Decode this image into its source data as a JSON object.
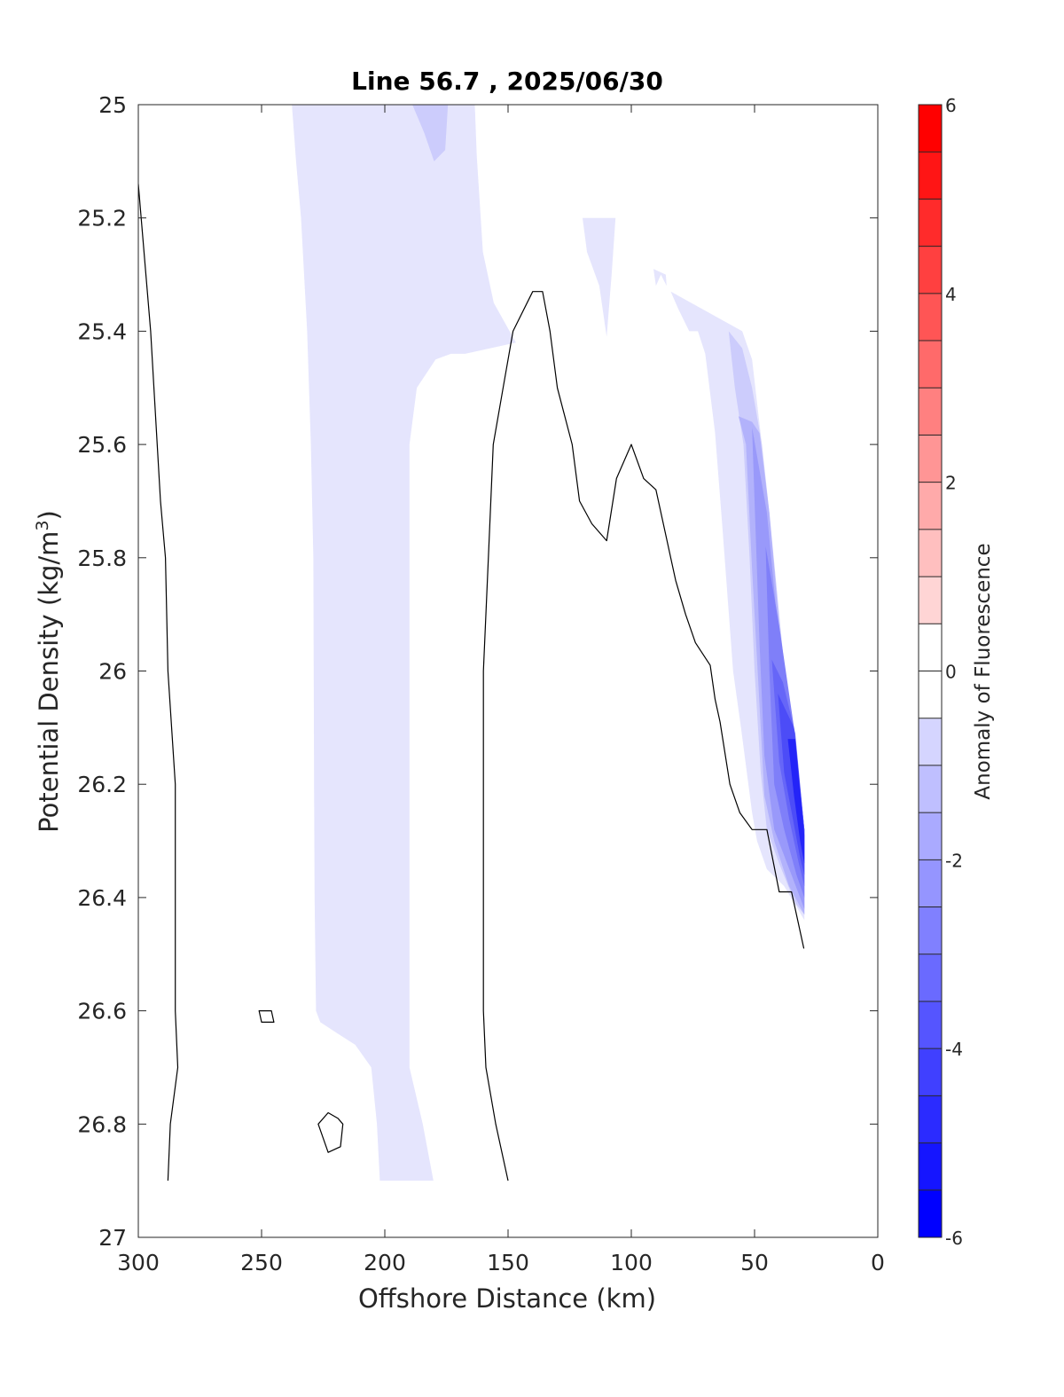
{
  "chart_data": {
    "type": "contour",
    "title": "Line 56.7 , 2025/06/30",
    "xlabel": "Offshore Distance (km)",
    "ylabel_main": "Potential Density (kg/m",
    "ylabel_sup": "3",
    "ylabel_close": ")",
    "colorbar_label": "Anomaly of Fluorescence",
    "x_reversed": true,
    "y_reversed": true,
    "xlim": [
      0,
      300
    ],
    "ylim": [
      25,
      27
    ],
    "xticks": [
      300,
      250,
      200,
      150,
      100,
      50,
      0
    ],
    "xtick_labels": [
      "300",
      "250",
      "200",
      "150",
      "100",
      "50",
      "0"
    ],
    "yticks": [
      25,
      25.2,
      25.4,
      25.6,
      25.8,
      26,
      26.2,
      26.4,
      26.6,
      26.8,
      27
    ],
    "ytick_labels": [
      "25",
      "25.2",
      "25.4",
      "25.6",
      "25.8",
      "26",
      "26.2",
      "26.4",
      "26.6",
      "26.8",
      "27"
    ],
    "colorbar": {
      "range": [
        -6,
        6
      ],
      "step": 0.5,
      "ticks": [
        6,
        4,
        2,
        0,
        -2,
        -4,
        -6
      ],
      "tick_labels": [
        "6",
        "4",
        "2",
        "0",
        "-2",
        "-4",
        "-6"
      ],
      "neg_color": "#0000ff",
      "pos_color": "#ff0000",
      "zero_color": "#ffffff"
    },
    "filled_regions": [
      {
        "level": -0.75,
        "color": "#e5e5fd",
        "points": [
          [
            237.7,
            25.0
          ],
          [
            163.5,
            25.0
          ],
          [
            162.7,
            25.09
          ],
          [
            160.2,
            25.26
          ],
          [
            155.8,
            25.35
          ],
          [
            146.8,
            25.42
          ],
          [
            167.4,
            25.44
          ],
          [
            173.2,
            25.44
          ],
          [
            179.4,
            25.45
          ],
          [
            187.0,
            25.5
          ],
          [
            190.0,
            25.6
          ],
          [
            190.0,
            25.8
          ],
          [
            190.0,
            26.2
          ],
          [
            190.0,
            26.6
          ],
          [
            190.0,
            26.7
          ],
          [
            184.6,
            26.8
          ],
          [
            180.3,
            26.9
          ],
          [
            177.0,
            26.9
          ],
          [
            202.0,
            26.9
          ],
          [
            203.2,
            26.8
          ],
          [
            205.5,
            26.7
          ],
          [
            212.0,
            26.66
          ],
          [
            219.2,
            26.64
          ],
          [
            226.2,
            26.62
          ],
          [
            227.9,
            26.6
          ],
          [
            228.5,
            26.4
          ],
          [
            228.7,
            26.2
          ],
          [
            229.0,
            25.8
          ],
          [
            230.0,
            25.6
          ],
          [
            231.5,
            25.4
          ],
          [
            234.0,
            25.2
          ],
          [
            236.0,
            25.1
          ]
        ]
      },
      {
        "level": -1.25,
        "color": "#ccccfc",
        "points": [
          [
            188.8,
            25.0
          ],
          [
            174.4,
            25.0
          ],
          [
            175.5,
            25.08
          ],
          [
            180.0,
            25.1
          ],
          [
            184.0,
            25.05
          ]
        ]
      },
      {
        "level": -0.75,
        "color": "#e5e5fd",
        "points": [
          [
            119.8,
            25.2
          ],
          [
            106.4,
            25.2
          ],
          [
            108.0,
            25.3
          ],
          [
            110.0,
            25.41
          ],
          [
            113.0,
            25.32
          ],
          [
            118.0,
            25.26
          ]
        ]
      },
      {
        "level": -0.75,
        "color": "#e5e5fd",
        "points": [
          [
            91.0,
            25.29
          ],
          [
            86.0,
            25.3
          ],
          [
            85.7,
            25.32
          ],
          [
            88.0,
            25.3
          ],
          [
            89.0,
            25.31
          ],
          [
            90.0,
            25.32
          ]
        ]
      },
      {
        "level": -0.75,
        "color": "#e5e5fd",
        "points": [
          [
            84.0,
            25.33
          ],
          [
            81.0,
            25.36
          ],
          [
            76.5,
            25.4
          ],
          [
            73.0,
            25.4
          ],
          [
            70.0,
            25.44
          ],
          [
            66.0,
            25.58
          ],
          [
            63.0,
            25.75
          ],
          [
            58.7,
            26.0
          ],
          [
            55.5,
            26.1
          ],
          [
            51.0,
            26.25
          ],
          [
            49.0,
            26.3
          ],
          [
            45.0,
            26.35
          ],
          [
            38.0,
            26.38
          ],
          [
            29.8,
            26.44
          ],
          [
            29.8,
            26.3
          ],
          [
            35.0,
            26.1
          ],
          [
            40.0,
            25.95
          ],
          [
            44.0,
            25.75
          ],
          [
            47.0,
            25.6
          ],
          [
            51.0,
            25.45
          ],
          [
            55.0,
            25.4
          ]
        ]
      },
      {
        "level": -1.25,
        "color": "#ccccfc",
        "points": [
          [
            60.5,
            25.4
          ],
          [
            58.0,
            25.5
          ],
          [
            54.5,
            25.6
          ],
          [
            52.0,
            25.8
          ],
          [
            50.0,
            26.0
          ],
          [
            47.5,
            26.18
          ],
          [
            45.0,
            26.28
          ],
          [
            40.0,
            26.34
          ],
          [
            33.5,
            26.41
          ],
          [
            29.8,
            26.43
          ],
          [
            29.8,
            26.3
          ],
          [
            36.0,
            26.08
          ],
          [
            40.0,
            25.9
          ],
          [
            44.0,
            25.72
          ],
          [
            47.0,
            25.6
          ],
          [
            51.0,
            25.5
          ],
          [
            55.0,
            25.43
          ]
        ]
      },
      {
        "level": -1.75,
        "color": "#b2b2fb",
        "points": [
          [
            56.5,
            25.55
          ],
          [
            53.5,
            25.6
          ],
          [
            51.0,
            25.82
          ],
          [
            48.5,
            26.02
          ],
          [
            46.0,
            26.22
          ],
          [
            42.0,
            26.3
          ],
          [
            36.0,
            26.38
          ],
          [
            29.8,
            26.43
          ],
          [
            29.8,
            26.28
          ],
          [
            35.0,
            26.08
          ],
          [
            40.0,
            25.92
          ],
          [
            44.0,
            25.72
          ],
          [
            48.0,
            25.58
          ],
          [
            51.0,
            25.56
          ]
        ]
      },
      {
        "level": -2.25,
        "color": "#9999fa",
        "points": [
          [
            51.0,
            25.57
          ],
          [
            50.0,
            25.7
          ],
          [
            48.0,
            25.95
          ],
          [
            46.0,
            26.15
          ],
          [
            42.0,
            26.28
          ],
          [
            35.0,
            26.36
          ],
          [
            29.8,
            26.42
          ],
          [
            29.8,
            26.28
          ],
          [
            35.0,
            26.09
          ],
          [
            40.0,
            25.95
          ],
          [
            45.0,
            25.72
          ]
        ]
      },
      {
        "level": -2.75,
        "color": "#7f7ff9",
        "points": [
          [
            45.5,
            25.78
          ],
          [
            44.0,
            26.0
          ],
          [
            42.0,
            26.2
          ],
          [
            38.0,
            26.28
          ],
          [
            33.0,
            26.36
          ],
          [
            29.8,
            26.4
          ],
          [
            29.8,
            26.28
          ],
          [
            34.0,
            26.1
          ],
          [
            40.0,
            25.92
          ]
        ]
      },
      {
        "level": -3.25,
        "color": "#6666f8",
        "points": [
          [
            43.0,
            25.98
          ],
          [
            40.0,
            26.16
          ],
          [
            36.0,
            26.26
          ],
          [
            32.0,
            26.34
          ],
          [
            29.8,
            26.38
          ],
          [
            29.8,
            26.28
          ],
          [
            33.5,
            26.11
          ],
          [
            38.5,
            26.02
          ]
        ]
      },
      {
        "level": -3.75,
        "color": "#4c4cf7",
        "points": [
          [
            40.5,
            26.04
          ],
          [
            38.0,
            26.18
          ],
          [
            34.5,
            26.26
          ],
          [
            31.5,
            26.33
          ],
          [
            29.8,
            26.36
          ],
          [
            29.8,
            26.28
          ],
          [
            34.0,
            26.1
          ]
        ]
      },
      {
        "level": -4.5,
        "color": "#2424f8",
        "points": [
          [
            36.5,
            26.12
          ],
          [
            34.0,
            26.22
          ],
          [
            31.5,
            26.3
          ],
          [
            29.8,
            26.34
          ],
          [
            29.8,
            26.29
          ],
          [
            33.5,
            26.12
          ]
        ]
      }
    ],
    "zero_contours": [
      {
        "name": "zero-contour-west",
        "points": [
          [
            300,
            25.14
          ],
          [
            295,
            25.4
          ],
          [
            291,
            25.7
          ],
          [
            289,
            25.8
          ],
          [
            288,
            26.0
          ],
          [
            285,
            26.2
          ],
          [
            285,
            26.4
          ],
          [
            285,
            26.6
          ],
          [
            284,
            26.7
          ],
          [
            287,
            26.8
          ],
          [
            288,
            26.9
          ]
        ]
      },
      {
        "name": "zero-contour-center",
        "points": [
          [
            150,
            26.9
          ],
          [
            155,
            26.8
          ],
          [
            159,
            26.7
          ],
          [
            160,
            26.6
          ],
          [
            160,
            26.2
          ],
          [
            160,
            26.0
          ],
          [
            158,
            25.8
          ],
          [
            156,
            25.6
          ],
          [
            152,
            25.5
          ],
          [
            148,
            25.4
          ],
          [
            140,
            25.33
          ],
          [
            136,
            25.33
          ],
          [
            133,
            25.4
          ],
          [
            130,
            25.5
          ],
          [
            124,
            25.6
          ],
          [
            121,
            25.7
          ],
          [
            116,
            25.74
          ],
          [
            110,
            25.77
          ],
          [
            106,
            25.66
          ],
          [
            100,
            25.6
          ],
          [
            95,
            25.66
          ],
          [
            90,
            25.68
          ],
          [
            86,
            25.76
          ],
          [
            82,
            25.84
          ],
          [
            78,
            25.9
          ],
          [
            74,
            25.95
          ],
          [
            68,
            25.99
          ],
          [
            66,
            26.05
          ],
          [
            64,
            26.09
          ],
          [
            60,
            26.2
          ],
          [
            56,
            26.25
          ],
          [
            51,
            26.28
          ],
          [
            45,
            26.28
          ],
          [
            40,
            26.39
          ],
          [
            35,
            26.39
          ],
          [
            30,
            26.49
          ]
        ]
      },
      {
        "name": "zero-contour-loop-small",
        "points": [
          [
            251,
            26.6
          ],
          [
            246,
            26.6
          ],
          [
            245,
            26.62
          ],
          [
            250,
            26.62
          ]
        ]
      },
      {
        "name": "zero-contour-loop-lower",
        "points": [
          [
            227,
            26.8
          ],
          [
            223,
            26.78
          ],
          [
            219,
            26.79
          ],
          [
            217,
            26.8
          ],
          [
            218,
            26.84
          ],
          [
            223,
            26.85
          ]
        ]
      }
    ]
  }
}
